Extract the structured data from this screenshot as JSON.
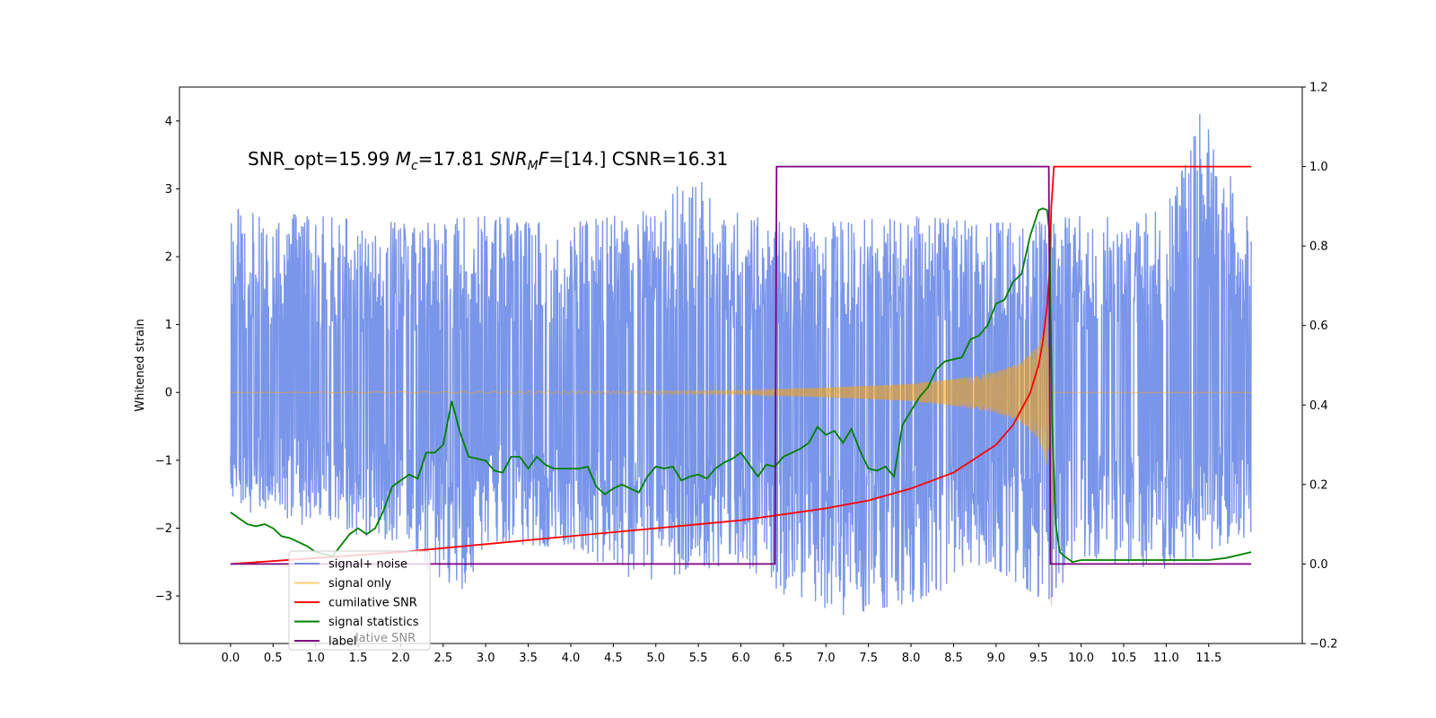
{
  "chart_data": {
    "type": "line",
    "ylabel": "Whitened strain",
    "xlim": [
      -0.6,
      12.6
    ],
    "ylim": [
      -3.7,
      4.5
    ],
    "ylim_right": [
      -0.2,
      1.2
    ],
    "x_ticks": [
      0.0,
      0.5,
      1.0,
      1.5,
      2.0,
      2.5,
      3.0,
      3.5,
      4.0,
      4.5,
      5.0,
      5.5,
      6.0,
      6.5,
      7.0,
      7.5,
      8.0,
      8.5,
      9.0,
      9.5,
      10.0,
      10.5,
      11.0,
      11.5
    ],
    "x_tick_labels": [
      "0.0",
      "0.5",
      "1.0",
      "1.5",
      "2.0",
      "2.5",
      "3.0",
      "3.5",
      "4.0",
      "4.5",
      "5.0",
      "5.5",
      "6.0",
      "6.5",
      "7.0",
      "7.5",
      "8.0",
      "8.5",
      "9.0",
      "9.5",
      "10.0",
      "10.5",
      "11.0",
      "11.5"
    ],
    "y_ticks": [
      -3,
      -2,
      -1,
      0,
      1,
      2,
      3,
      4
    ],
    "y_tick_labels": [
      "−3",
      "−2",
      "−1",
      "0",
      "1",
      "2",
      "3",
      "4"
    ],
    "y_ticks_right": [
      -0.2,
      0.0,
      0.2,
      0.4,
      0.6,
      0.8,
      1.0,
      1.2
    ],
    "y_tick_labels_right": [
      "−0.2",
      "0.0",
      "0.2",
      "0.4",
      "0.6",
      "0.8",
      "1.0",
      "1.2"
    ],
    "annotation": {
      "part1": "SNR_opt=15.99 ",
      "mc_symbol": "M",
      "mc_sub": "c",
      "part2": "=17.81  ",
      "snr_symbol": "SNR",
      "snr_sub": "M",
      "f_symbol": "F",
      "part3": "=[14.]      CSNR=16.31"
    },
    "legend": {
      "placement": "lower-left",
      "entries": [
        {
          "label": "signal+ noise",
          "color": "#4169e1"
        },
        {
          "label": "signal only",
          "color": "#ffa500"
        },
        {
          "label": "cumilative SNR",
          "color": "#ff0000"
        },
        {
          "label": "signal statistics",
          "color": "#008000"
        },
        {
          "label": "label",
          "color": "#800080"
        }
      ],
      "ghost_text": "lative SNR"
    },
    "series": [
      {
        "name": "signal+ noise",
        "axis": "left",
        "color": "#4169e1",
        "opacity": 0.7,
        "envelope_upper": [
          [
            0.0,
            2.7
          ],
          [
            1.0,
            2.6
          ],
          [
            2.0,
            2.5
          ],
          [
            3.0,
            2.6
          ],
          [
            4.0,
            2.5
          ],
          [
            5.0,
            2.7
          ],
          [
            5.4,
            3.25
          ],
          [
            6.0,
            2.6
          ],
          [
            7.0,
            2.5
          ],
          [
            8.0,
            2.6
          ],
          [
            9.0,
            2.5
          ],
          [
            10.0,
            2.6
          ],
          [
            11.0,
            2.7
          ],
          [
            11.4,
            4.12
          ],
          [
            12.0,
            2.6
          ]
        ],
        "envelope_lower": [
          [
            0.0,
            -1.7
          ],
          [
            1.0,
            -2.0
          ],
          [
            2.0,
            -2.2
          ],
          [
            2.7,
            -3.1
          ],
          [
            3.0,
            -2.2
          ],
          [
            4.0,
            -2.3
          ],
          [
            4.8,
            -2.8
          ],
          [
            6.0,
            -2.5
          ],
          [
            6.9,
            -3.35
          ],
          [
            8.0,
            -3.1
          ],
          [
            9.0,
            -2.6
          ],
          [
            9.6,
            -3.1
          ],
          [
            10.0,
            -2.5
          ],
          [
            11.0,
            -2.6
          ],
          [
            12.0,
            -2.1
          ]
        ]
      },
      {
        "name": "signal only",
        "axis": "left",
        "color": "#ffa500",
        "amplitude_envelope": [
          [
            0.0,
            0.0
          ],
          [
            6.0,
            0.03
          ],
          [
            7.0,
            0.07
          ],
          [
            8.0,
            0.13
          ],
          [
            8.5,
            0.2
          ],
          [
            9.0,
            0.3
          ],
          [
            9.3,
            0.45
          ],
          [
            9.5,
            0.7
          ],
          [
            9.6,
            1.1
          ],
          [
            9.63,
            2.0
          ],
          [
            9.65,
            -3.15
          ],
          [
            9.67,
            0.0
          ],
          [
            12.0,
            0.0
          ]
        ]
      },
      {
        "name": "cumilative SNR",
        "axis": "right",
        "x": [
          0.0,
          1.0,
          2.0,
          3.0,
          4.0,
          5.0,
          6.0,
          6.5,
          7.0,
          7.5,
          8.0,
          8.5,
          9.0,
          9.2,
          9.4,
          9.5,
          9.55,
          9.6,
          9.63,
          9.65,
          9.68,
          10.0,
          11.0,
          12.0
        ],
        "values": [
          0.0,
          0.015,
          0.03,
          0.05,
          0.07,
          0.09,
          0.11,
          0.125,
          0.14,
          0.16,
          0.19,
          0.23,
          0.3,
          0.35,
          0.43,
          0.5,
          0.56,
          0.65,
          0.74,
          0.9,
          1.0,
          1.0,
          1.0,
          1.0
        ],
        "color": "#ff0000"
      },
      {
        "name": "signal statistics",
        "axis": "right",
        "x": [
          0.0,
          0.1,
          0.2,
          0.3,
          0.4,
          0.5,
          0.6,
          0.7,
          0.8,
          0.9,
          1.0,
          1.2,
          1.4,
          1.5,
          1.6,
          1.7,
          1.8,
          1.9,
          2.0,
          2.1,
          2.2,
          2.3,
          2.4,
          2.5,
          2.6,
          2.7,
          2.8,
          2.9,
          3.0,
          3.1,
          3.2,
          3.3,
          3.4,
          3.5,
          3.6,
          3.7,
          3.8,
          3.9,
          4.0,
          4.1,
          4.2,
          4.3,
          4.4,
          4.5,
          4.6,
          4.7,
          4.8,
          4.9,
          5.0,
          5.1,
          5.2,
          5.3,
          5.4,
          5.5,
          5.6,
          5.7,
          5.8,
          5.9,
          6.0,
          6.1,
          6.2,
          6.3,
          6.4,
          6.5,
          6.6,
          6.7,
          6.8,
          6.9,
          7.0,
          7.1,
          7.2,
          7.3,
          7.4,
          7.5,
          7.6,
          7.7,
          7.8,
          7.9,
          8.0,
          8.1,
          8.2,
          8.3,
          8.4,
          8.5,
          8.6,
          8.7,
          8.8,
          8.9,
          9.0,
          9.1,
          9.2,
          9.3,
          9.4,
          9.5,
          9.55,
          9.6,
          9.63,
          9.66,
          9.7,
          9.75,
          9.8,
          9.9,
          10.0,
          10.5,
          11.0,
          11.5,
          11.7,
          11.9,
          12.0
        ],
        "values": [
          0.13,
          0.115,
          0.1,
          0.095,
          0.1,
          0.09,
          0.07,
          0.065,
          0.055,
          0.045,
          0.03,
          0.02,
          0.075,
          0.09,
          0.075,
          0.09,
          0.135,
          0.195,
          0.21,
          0.225,
          0.215,
          0.28,
          0.28,
          0.3,
          0.41,
          0.33,
          0.27,
          0.265,
          0.26,
          0.235,
          0.23,
          0.27,
          0.27,
          0.24,
          0.27,
          0.25,
          0.24,
          0.24,
          0.24,
          0.24,
          0.245,
          0.195,
          0.175,
          0.19,
          0.2,
          0.19,
          0.18,
          0.22,
          0.245,
          0.24,
          0.245,
          0.21,
          0.22,
          0.225,
          0.215,
          0.24,
          0.255,
          0.265,
          0.28,
          0.25,
          0.22,
          0.25,
          0.245,
          0.27,
          0.28,
          0.29,
          0.305,
          0.345,
          0.325,
          0.335,
          0.305,
          0.34,
          0.285,
          0.24,
          0.235,
          0.245,
          0.22,
          0.35,
          0.385,
          0.42,
          0.445,
          0.49,
          0.51,
          0.515,
          0.52,
          0.565,
          0.575,
          0.6,
          0.655,
          0.665,
          0.71,
          0.73,
          0.825,
          0.89,
          0.895,
          0.89,
          0.83,
          0.35,
          0.1,
          0.03,
          0.02,
          0.005,
          0.01,
          0.01,
          0.01,
          0.01,
          0.015,
          0.025,
          0.03
        ],
        "color": "#008000"
      },
      {
        "name": "label",
        "axis": "right",
        "x": [
          0.0,
          6.4,
          6.42,
          9.62,
          9.64,
          12.0
        ],
        "values": [
          0.0,
          0.0,
          1.0,
          1.0,
          0.0,
          0.0
        ],
        "color": "#800080"
      }
    ]
  }
}
